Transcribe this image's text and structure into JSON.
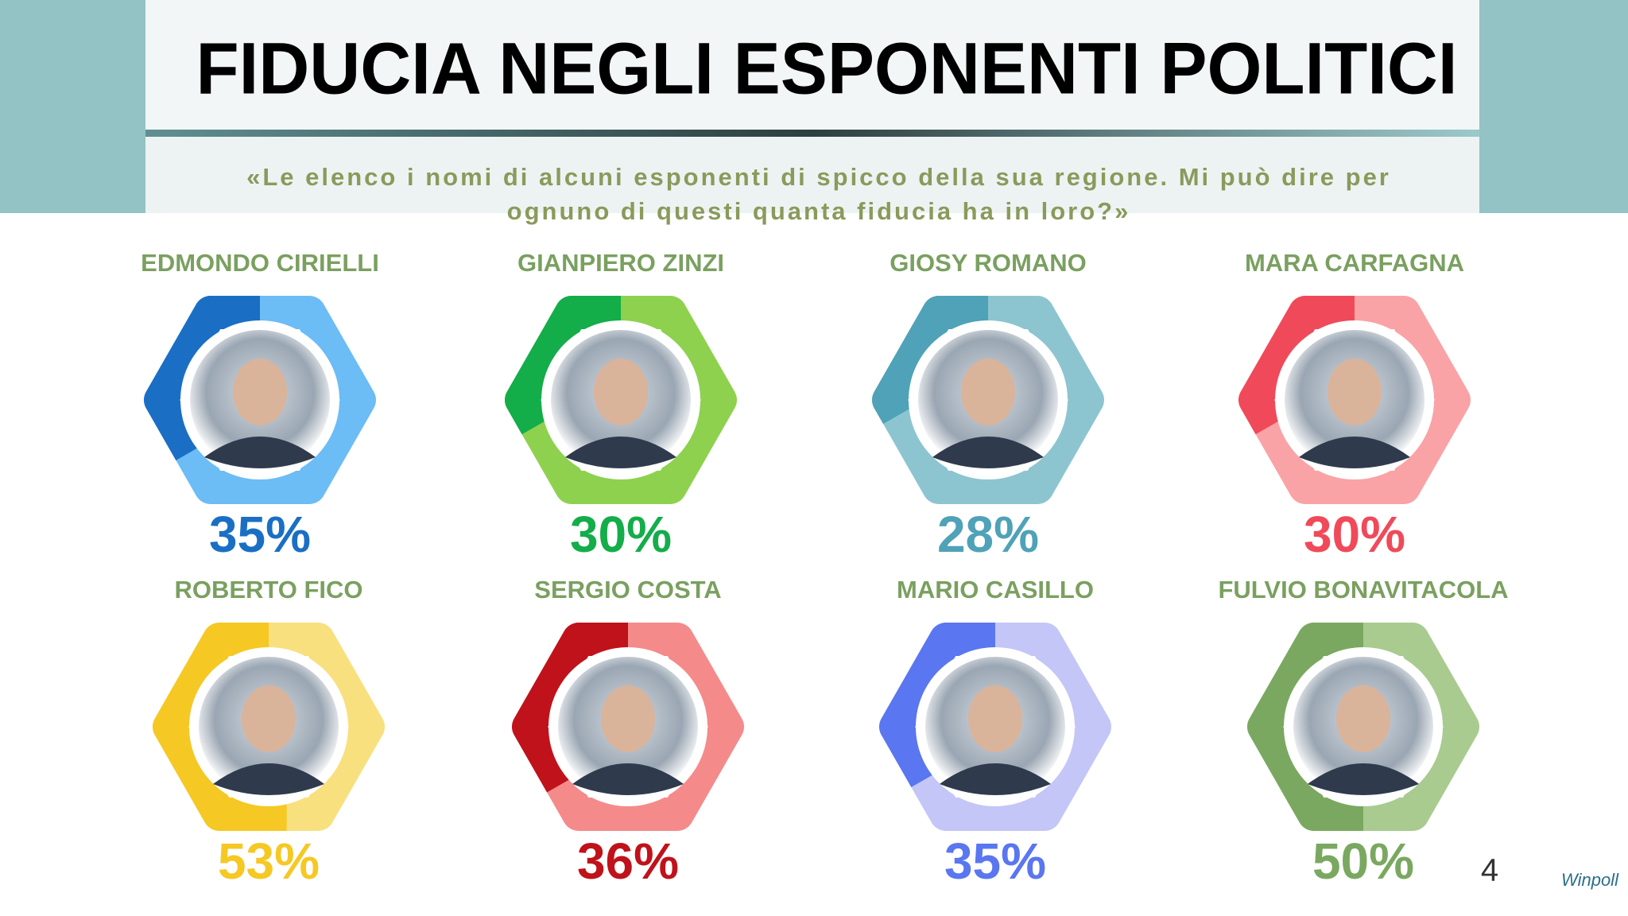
{
  "chart_data": {
    "type": "hexagon-gauge",
    "title": "FIDUCIA NEGLI ESPONENTI POLITICI",
    "subtitle": [
      "«Le elenco i nomi di alcuni esponenti di spicco della sua regione. Mi può dire per",
      "ognuno di questi quanta fiducia ha in loro?»"
    ],
    "categories": [
      "EDMONDO CIRIELLI",
      "GIANPIERO ZINZI",
      "GIOSY ROMANO",
      "MARA CARFAGNA",
      "ROBERTO FICO",
      "SERGIO COSTA",
      "MARIO CASILLO",
      "FULVIO BONAVITACOLA"
    ],
    "values": [
      35,
      30,
      28,
      30,
      53,
      36,
      35,
      50
    ],
    "value_labels": [
      "35%",
      "30%",
      "28%",
      "30%",
      "53%",
      "36%",
      "35%",
      "50%"
    ],
    "colors": [
      "#1a6fc4",
      "#13ad4a",
      "#4fa2b7",
      "#f04a5a",
      "#f5c824",
      "#c0121a",
      "#5a76f0",
      "#7aa860"
    ],
    "track_colors": [
      "#6cbcf5",
      "#8ed14f",
      "#8cc5d0",
      "#f9a3a6",
      "#f9e07e",
      "#f58a8a",
      "#c3c6f7",
      "#a9cb8f"
    ]
  },
  "page_number": 4,
  "logo": "Winpoll"
}
